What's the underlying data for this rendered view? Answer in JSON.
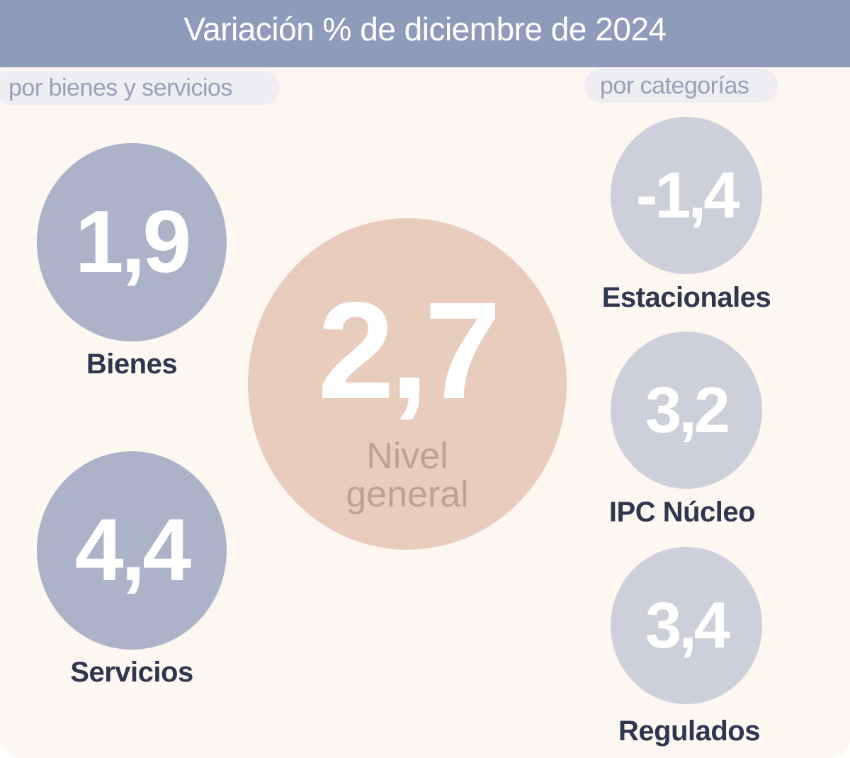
{
  "header": {
    "title": "Variación % de diciembre de 2024"
  },
  "left": {
    "tag": "por bienes y servicios",
    "items": [
      {
        "value": "1,9",
        "label": "Bienes"
      },
      {
        "value": "4,4",
        "label": "Servicios"
      }
    ]
  },
  "center": {
    "value": "2,7",
    "label_lines": [
      "Nivel",
      "general"
    ]
  },
  "right": {
    "tag": "por categorías",
    "items": [
      {
        "value": "-1,4",
        "label": "Estacionales"
      },
      {
        "value": "3,2",
        "label": "IPC Núcleo"
      },
      {
        "value": "3,4",
        "label": "Regulados"
      }
    ]
  }
}
